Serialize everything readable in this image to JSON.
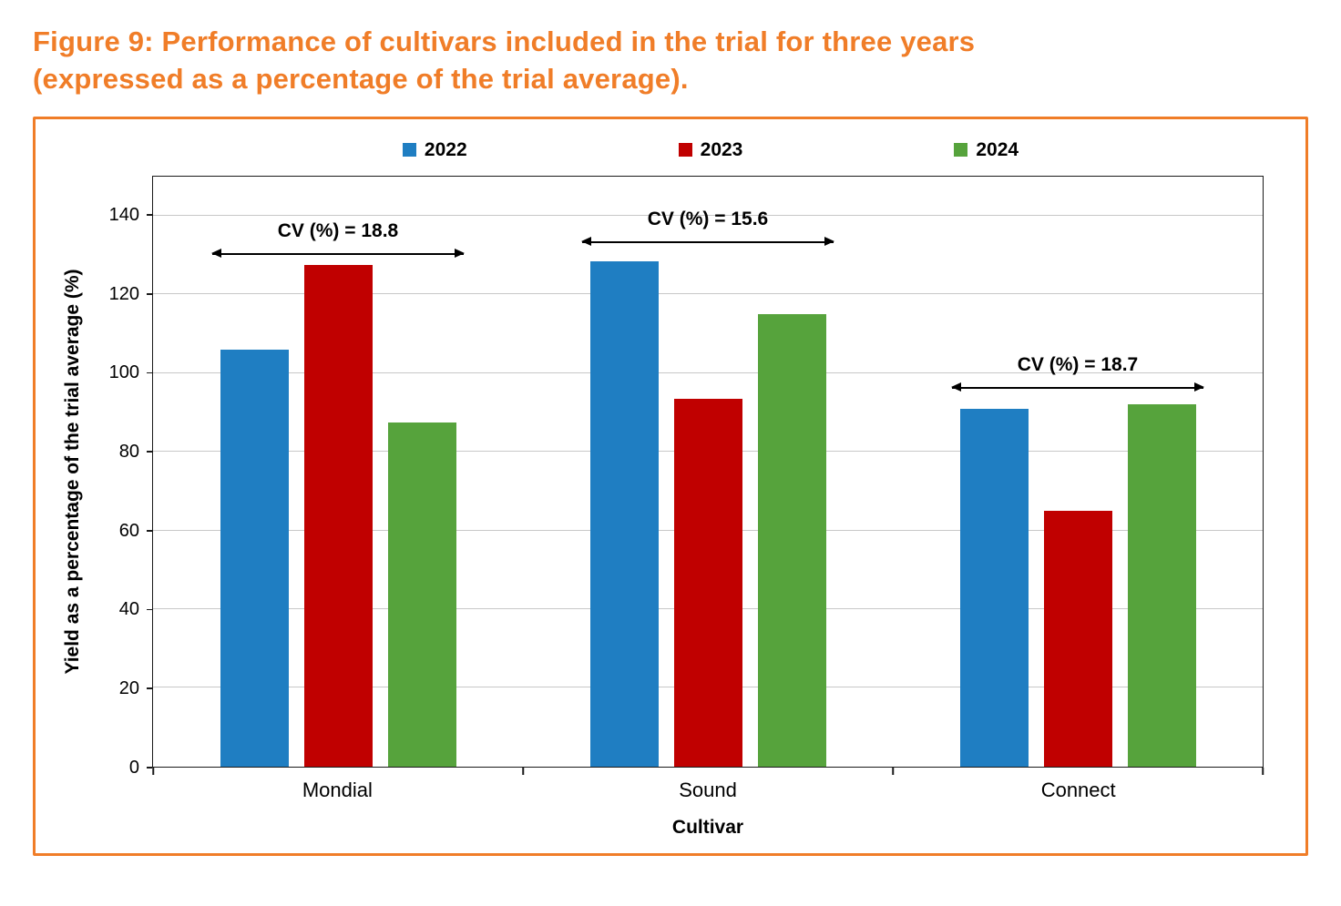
{
  "figure": {
    "title_line1": "Figure 9: Performance of cultivars included in the trial for three years",
    "title_line2": "(expressed as a percentage of the trial average).",
    "accent_color": "#F07D28"
  },
  "chart_data": {
    "type": "bar",
    "title": "Figure 9: Performance of cultivars included in the trial for three years (expressed as a percentage of the trial average).",
    "categories": [
      "Mondial",
      "Sound",
      "Connect"
    ],
    "series": [
      {
        "name": "2022",
        "color": "#1F7EC2",
        "values": [
          106,
          128.5,
          91
        ]
      },
      {
        "name": "2023",
        "color": "#C00000",
        "values": [
          127.5,
          93.5,
          65
        ]
      },
      {
        "name": "2024",
        "color": "#56A33C",
        "values": [
          87.5,
          115,
          92
        ]
      }
    ],
    "xlabel": "Cultivar",
    "ylabel": "Yield as a percentage of the trial average (%)",
    "ylim": [
      0,
      150
    ],
    "ytick_step": 20,
    "ytick_max": 140,
    "grid": true,
    "legend_position": "top",
    "annotations": [
      {
        "label": "CV (%) = 18.8",
        "category": "Mondial",
        "arrow_y": 130
      },
      {
        "label": "CV (%) = 15.6",
        "category": "Sound",
        "arrow_y": 133
      },
      {
        "label": "CV (%) = 18.7",
        "category": "Connect",
        "arrow_y": 96
      }
    ]
  }
}
